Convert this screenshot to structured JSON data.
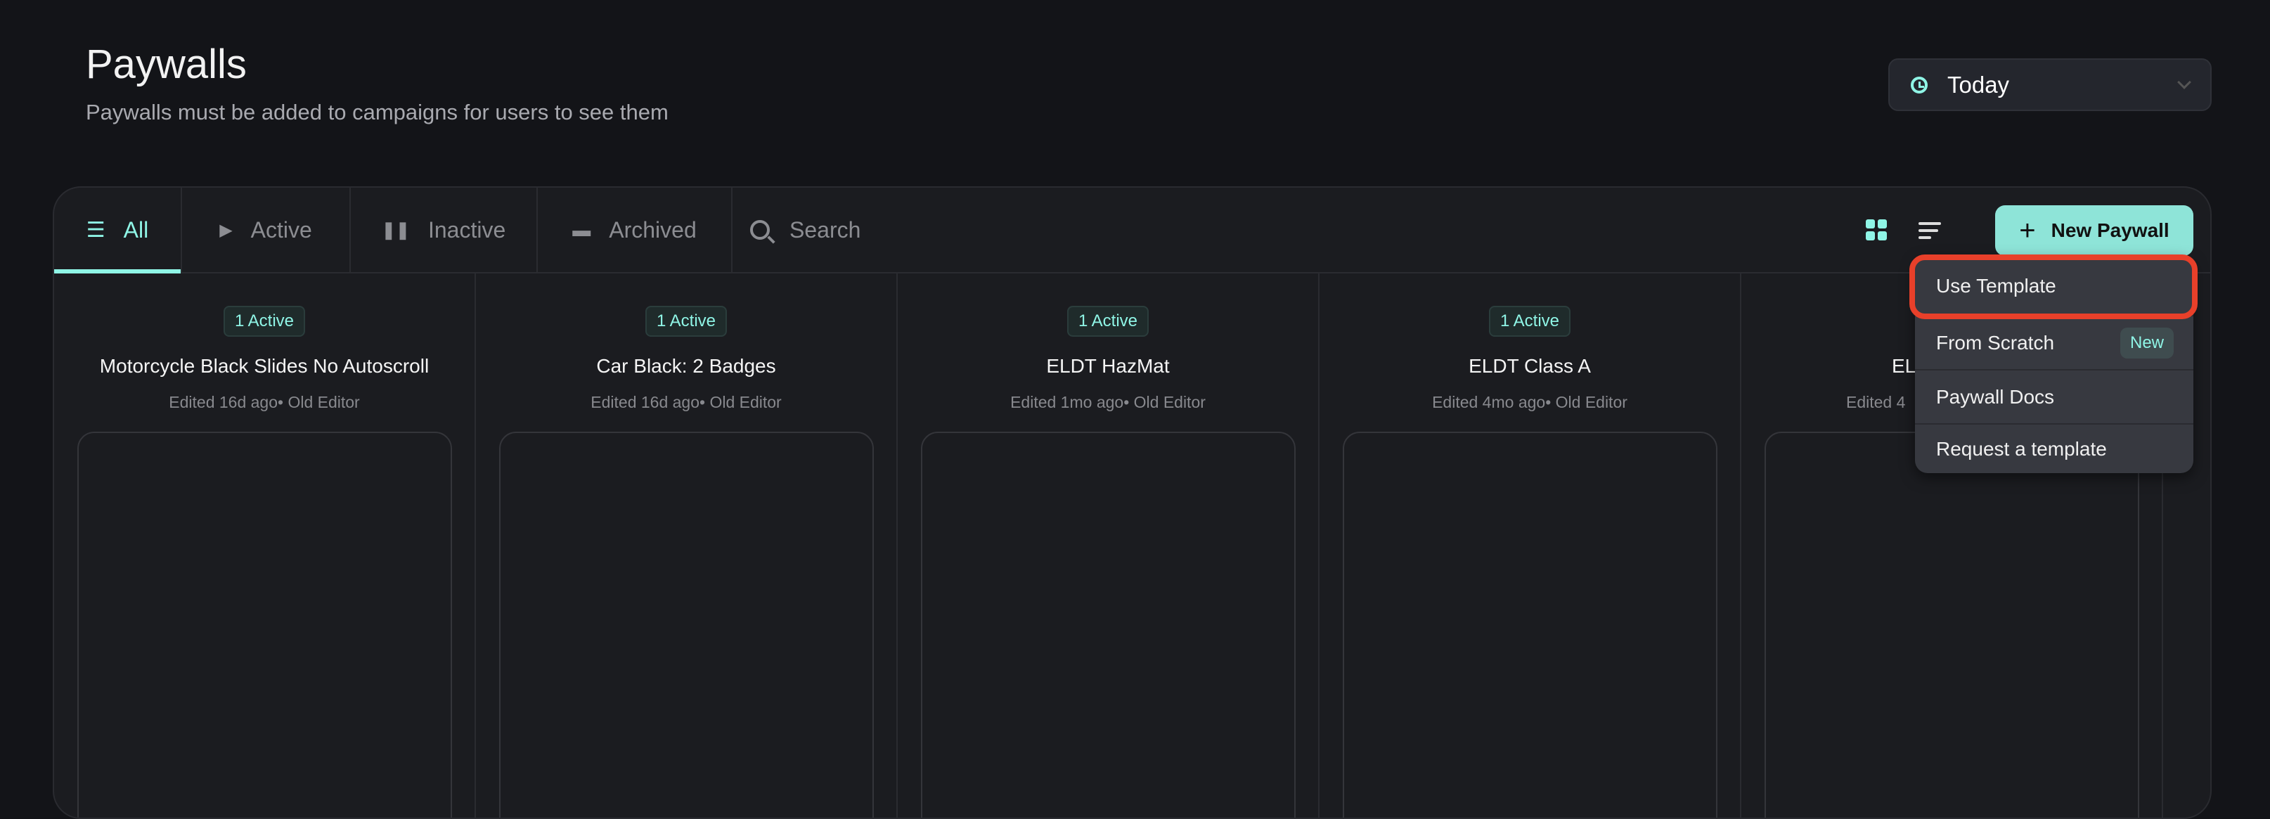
{
  "header": {
    "title": "Paywalls",
    "subtitle": "Paywalls must be added to campaigns for users to see them"
  },
  "date_filter": {
    "icon": "clock-icon",
    "value": "Today"
  },
  "tabs": [
    {
      "label": "All",
      "icon": "list-icon",
      "active": true
    },
    {
      "label": "Active",
      "icon": "play-icon"
    },
    {
      "label": "Inactive",
      "icon": "pause-icon"
    },
    {
      "label": "Archived",
      "icon": "archive-icon"
    }
  ],
  "search": {
    "placeholder": "Search"
  },
  "toolbar": {
    "new_paywall": "New Paywall"
  },
  "cards": [
    {
      "badge": "1 Active",
      "title": "Motorcycle Black Slides No Autoscroll",
      "edited": "Edited 16d ago• Old Editor"
    },
    {
      "badge": "1 Active",
      "title": "Car Black: 2 Badges",
      "edited": "Edited 16d ago• Old Editor"
    },
    {
      "badge": "1 Active",
      "title": "ELDT HazMat",
      "edited": "Edited 1mo ago• Old Editor"
    },
    {
      "badge": "1 Active",
      "title": "ELDT Class A",
      "edited": "Edited 4mo ago• Old Editor"
    },
    {
      "title": "EL",
      "edited": "Edited 4"
    }
  ],
  "menu": {
    "items": [
      {
        "label": "Use Template",
        "highlighted": true
      },
      {
        "label": "From Scratch",
        "tag": "New"
      },
      {
        "label": "Paywall Docs"
      },
      {
        "label": "Request a template"
      }
    ]
  },
  "colors": {
    "accent": "#8ff5e6",
    "button": "#8ee4d8",
    "highlight": "#e8402a",
    "background": "#131418"
  }
}
